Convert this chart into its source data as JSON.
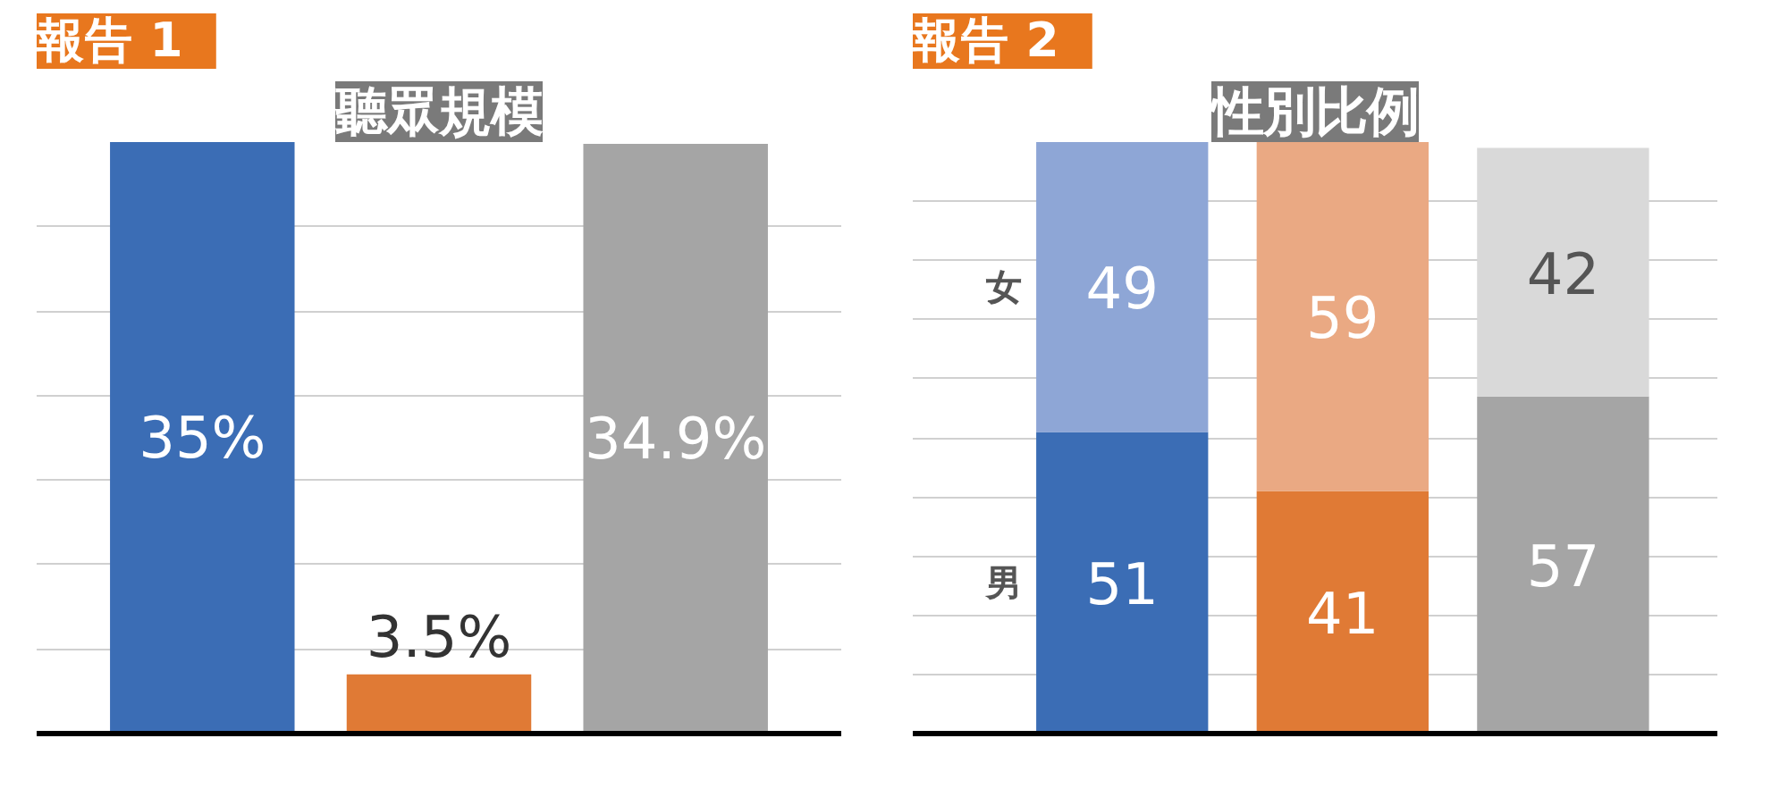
{
  "chart_data": [
    {
      "type": "bar",
      "title": "聽眾規模",
      "annotations": [
        "報告 1"
      ],
      "categories": [
        null,
        null,
        null
      ],
      "values": [
        35,
        3.5,
        34.9
      ],
      "colors": [
        "#3b6db5",
        "#e07a35",
        "#a5a5a5"
      ],
      "value_labels": [
        "35%",
        "3.5%",
        "34.9%"
      ],
      "grid": "y",
      "tick_labels": false
    },
    {
      "type": "bar",
      "title": "性別比例",
      "annotations": [
        "報告 2"
      ],
      "categories": [
        null,
        null,
        null
      ],
      "stacked": true,
      "series": [
        {
          "name": "男",
          "colors": [
            "#3b6db5",
            "#e07a35",
            "#a5a5a5"
          ],
          "values": [
            51,
            41,
            57
          ]
        },
        {
          "name": "女",
          "colors": [
            "#8ea6d6",
            "#eaa983",
            "#d9d9d9"
          ],
          "values": [
            49,
            59,
            42
          ]
        }
      ],
      "data_labels": true,
      "grid": "y",
      "tick_labels": false
    }
  ]
}
